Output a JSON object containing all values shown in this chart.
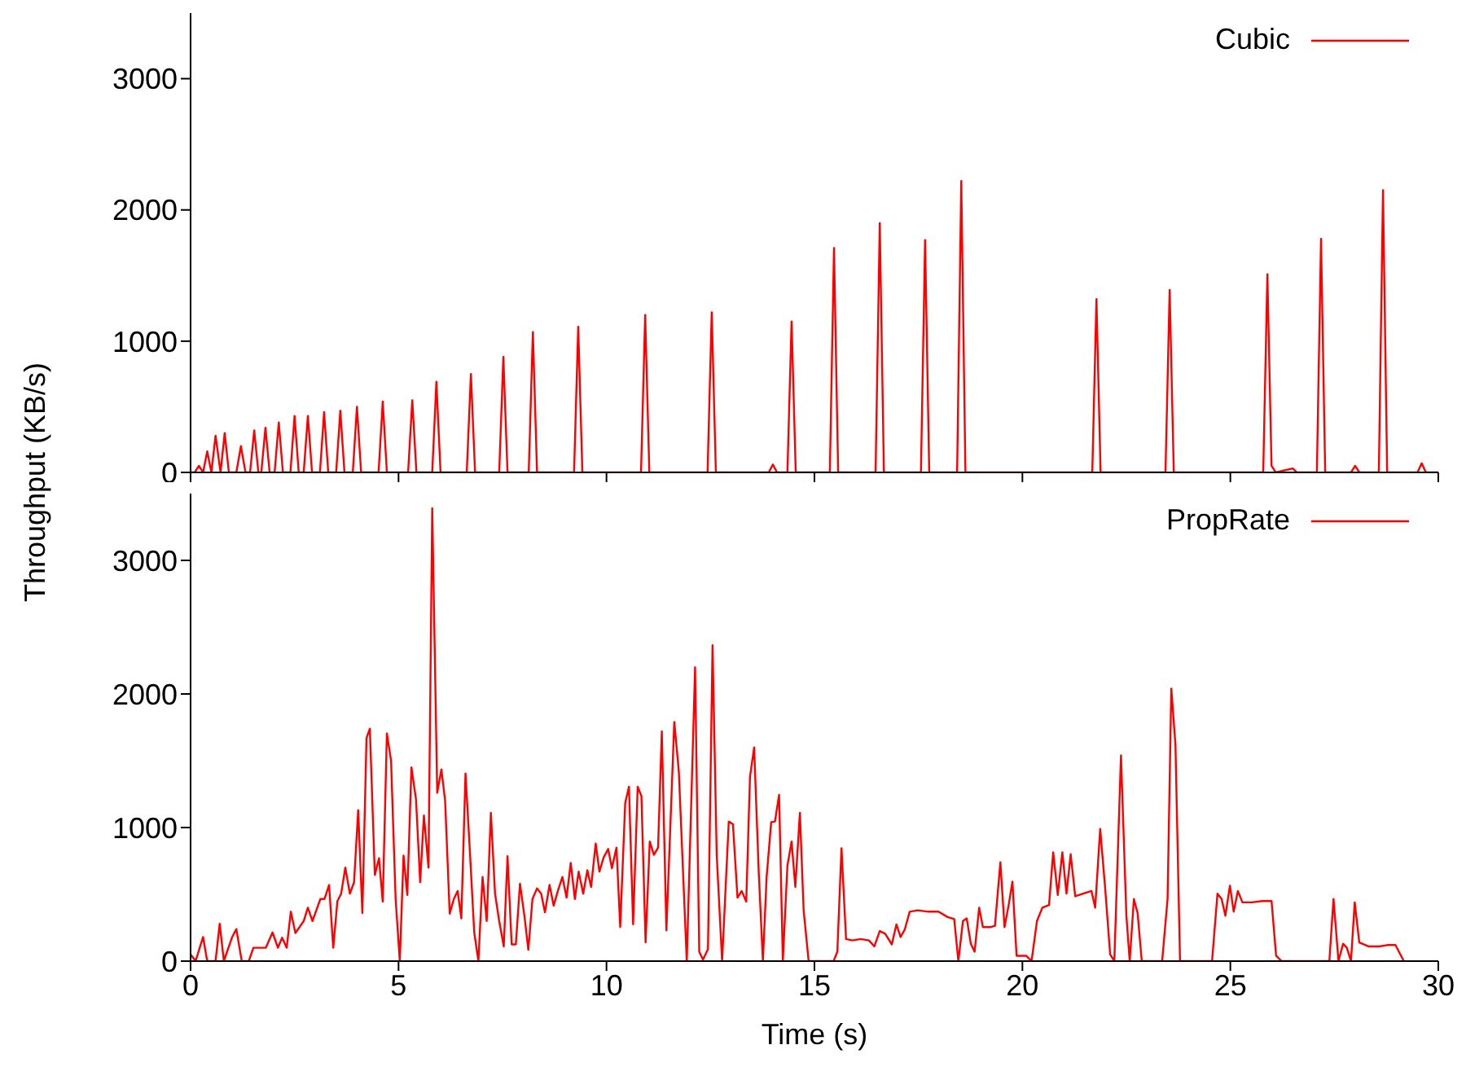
{
  "chart_data": [
    {
      "type": "line",
      "ylabel": "Throughput (KB/s)",
      "xlim": [
        0,
        30
      ],
      "xticks": [
        0,
        5,
        10,
        15,
        20,
        25,
        30
      ],
      "ylim": [
        0,
        3500
      ],
      "yticks": [
        0,
        1000,
        2000,
        3000
      ],
      "tick_labels": "y",
      "legend": "top right",
      "marker": "none",
      "line_style": "solid",
      "series": [
        {
          "name": "Cubic",
          "color": "#ff0000",
          "x": [
            0,
            0.1,
            0.2,
            0.3,
            0.4,
            0.5,
            0.6,
            0.72,
            0.82,
            0.92,
            1.1,
            1.21,
            1.32,
            1.43,
            1.53,
            1.63,
            1.7,
            1.8,
            1.9,
            2.02,
            2.12,
            2.22,
            2.4,
            2.5,
            2.6,
            2.72,
            2.82,
            2.92,
            3.11,
            3.21,
            3.31,
            3.5,
            3.6,
            3.7,
            3.9,
            4.0,
            4.1,
            4.52,
            4.62,
            4.72,
            5.23,
            5.33,
            5.43,
            5.81,
            5.91,
            6.01,
            6.64,
            6.74,
            6.84,
            7.42,
            7.52,
            7.62,
            8.13,
            8.23,
            8.33,
            9.22,
            9.32,
            9.42,
            10.83,
            10.93,
            11.03,
            12.43,
            12.53,
            12.63,
            13.9,
            14.0,
            14.1,
            14.35,
            14.45,
            14.55,
            15.37,
            15.47,
            15.57,
            16.47,
            16.57,
            16.67,
            17.56,
            17.66,
            17.76,
            18.43,
            18.53,
            18.63,
            21.68,
            21.78,
            21.88,
            23.44,
            23.54,
            23.64,
            25.79,
            25.89,
            25.99,
            26.09,
            26.5,
            26.6,
            27.08,
            27.18,
            27.28,
            27.9,
            28.0,
            28.1,
            28.57,
            28.67,
            28.77,
            29.5,
            29.6,
            29.7,
            30
          ],
          "values": [
            0,
            0,
            50,
            0,
            160,
            0,
            280,
            0,
            300,
            0,
            0,
            200,
            0,
            0,
            320,
            0,
            0,
            340,
            0,
            0,
            380,
            0,
            0,
            430,
            0,
            0,
            430,
            0,
            0,
            460,
            0,
            0,
            470,
            0,
            0,
            500,
            0,
            0,
            540,
            0,
            0,
            550,
            0,
            0,
            690,
            0,
            0,
            750,
            0,
            0,
            880,
            0,
            0,
            1070,
            0,
            0,
            1110,
            0,
            0,
            1200,
            0,
            0,
            1220,
            0,
            0,
            60,
            0,
            0,
            1150,
            0,
            0,
            1710,
            0,
            0,
            1900,
            0,
            0,
            1770,
            0,
            0,
            2220,
            0,
            0,
            1320,
            0,
            0,
            1390,
            0,
            0,
            1510,
            50,
            0,
            30,
            0,
            0,
            1780,
            0,
            0,
            50,
            0,
            0,
            2150,
            0,
            0,
            70,
            0,
            0
          ]
        }
      ]
    },
    {
      "type": "line",
      "xlabel": "Time (s)",
      "xlim": [
        0,
        30
      ],
      "xticks": [
        0,
        5,
        10,
        15,
        20,
        25,
        30
      ],
      "ylim": [
        0,
        3500
      ],
      "yticks": [
        0,
        1000,
        2000,
        3000
      ],
      "legend": "top right",
      "marker": "none",
      "line_style": "solid",
      "series": [
        {
          "name": "PropRate",
          "color": "#ff0000",
          "x": [
            0,
            0.12,
            0.3,
            0.4,
            0.6,
            0.7,
            0.8,
            1.0,
            1.1,
            1.23,
            1.4,
            1.51,
            1.81,
            1.97,
            2.1,
            2.2,
            2.31,
            2.41,
            2.52,
            2.72,
            2.82,
            2.93,
            3.12,
            3.22,
            3.33,
            3.43,
            3.53,
            3.62,
            3.72,
            3.83,
            3.93,
            4.03,
            4.13,
            4.23,
            4.31,
            4.43,
            4.53,
            4.62,
            4.72,
            4.82,
            4.93,
            5.03,
            5.12,
            5.21,
            5.31,
            5.42,
            5.52,
            5.61,
            5.72,
            5.81,
            5.93,
            6.03,
            6.12,
            6.23,
            6.33,
            6.42,
            6.51,
            6.61,
            6.72,
            6.82,
            6.92,
            7.02,
            7.12,
            7.22,
            7.32,
            7.42,
            7.53,
            7.62,
            7.72,
            7.82,
            7.92,
            8.03,
            8.12,
            8.22,
            8.33,
            8.43,
            8.52,
            8.63,
            8.73,
            8.83,
            8.94,
            9.04,
            9.14,
            9.24,
            9.33,
            9.44,
            9.54,
            9.63,
            9.74,
            9.83,
            9.93,
            10.04,
            10.13,
            10.24,
            10.33,
            10.45,
            10.54,
            10.64,
            10.75,
            10.84,
            10.94,
            11.04,
            11.14,
            11.24,
            11.33,
            11.44,
            11.63,
            11.74,
            11.93,
            12.13,
            12.23,
            12.32,
            12.44,
            12.55,
            12.65,
            12.78,
            12.94,
            13.04,
            13.15,
            13.25,
            13.36,
            13.45,
            13.55,
            13.66,
            13.76,
            13.85,
            13.96,
            14.05,
            14.15,
            14.24,
            14.35,
            14.45,
            14.54,
            14.65,
            14.74,
            14.86,
            15.46,
            15.55,
            15.65,
            15.76,
            15.91,
            16.11,
            16.31,
            16.44,
            16.57,
            16.7,
            16.86,
            16.97,
            17.07,
            17.17,
            17.29,
            17.48,
            17.74,
            17.98,
            18.2,
            18.36,
            18.46,
            18.57,
            18.66,
            18.76,
            18.85,
            18.96,
            19.05,
            19.24,
            19.34,
            19.47,
            19.57,
            19.67,
            19.76,
            19.86,
            19.96,
            20.09,
            20.22,
            20.35,
            20.48,
            20.64,
            20.74,
            20.85,
            20.96,
            21.06,
            21.16,
            21.27,
            21.46,
            21.66,
            21.75,
            21.87,
            21.99,
            22.11,
            22.21,
            22.37,
            22.5,
            22.58,
            22.68,
            22.77,
            22.87,
            23.36,
            23.49,
            23.58,
            23.68,
            23.79,
            24.56,
            24.69,
            24.79,
            24.88,
            24.99,
            25.08,
            25.18,
            25.29,
            25.51,
            25.77,
            25.99,
            26.1,
            26.23,
            27.38,
            27.48,
            27.6,
            27.71,
            27.8,
            27.9,
            27.99,
            28.1,
            28.32,
            28.58,
            28.77,
            28.97,
            29.17
          ],
          "values": [
            50,
            0,
            180,
            0,
            0,
            280,
            0,
            180,
            240,
            0,
            0,
            100,
            100,
            215,
            100,
            175,
            100,
            370,
            210,
            300,
            400,
            300,
            465,
            465,
            570,
            100,
            450,
            505,
            700,
            505,
            590,
            1130,
            360,
            1670,
            1740,
            645,
            770,
            445,
            1705,
            1500,
            465,
            0,
            790,
            495,
            1450,
            1210,
            590,
            1090,
            700,
            3390,
            1260,
            1435,
            1200,
            355,
            465,
            525,
            320,
            1405,
            795,
            215,
            0,
            630,
            300,
            1110,
            505,
            300,
            110,
            785,
            125,
            125,
            580,
            330,
            85,
            465,
            545,
            505,
            365,
            570,
            415,
            525,
            630,
            475,
            735,
            465,
            670,
            505,
            680,
            555,
            880,
            670,
            775,
            840,
            695,
            850,
            255,
            1185,
            1305,
            275,
            1305,
            1235,
            140,
            895,
            795,
            850,
            1720,
            230,
            1790,
            1415,
            0,
            2200,
            70,
            10,
            90,
            2365,
            795,
            0,
            1045,
            1025,
            475,
            525,
            445,
            1380,
            1600,
            670,
            0,
            630,
            1040,
            1045,
            1245,
            0,
            715,
            895,
            555,
            1110,
            380,
            0,
            0,
            70,
            845,
            165,
            155,
            165,
            155,
            110,
            225,
            205,
            125,
            275,
            180,
            235,
            370,
            380,
            370,
            370,
            330,
            315,
            0,
            300,
            320,
            130,
            70,
            400,
            255,
            255,
            265,
            740,
            255,
            420,
            595,
            40,
            40,
            40,
            0,
            300,
            400,
            420,
            815,
            495,
            815,
            505,
            800,
            485,
            505,
            525,
            400,
            990,
            545,
            50,
            0,
            1540,
            340,
            0,
            465,
            360,
            0,
            0,
            465,
            2040,
            1620,
            0,
            0,
            505,
            465,
            340,
            565,
            370,
            525,
            440,
            440,
            450,
            450,
            40,
            0,
            0,
            465,
            0,
            130,
            100,
            0,
            440,
            140,
            110,
            110,
            120,
            120,
            0
          ]
        }
      ]
    }
  ]
}
